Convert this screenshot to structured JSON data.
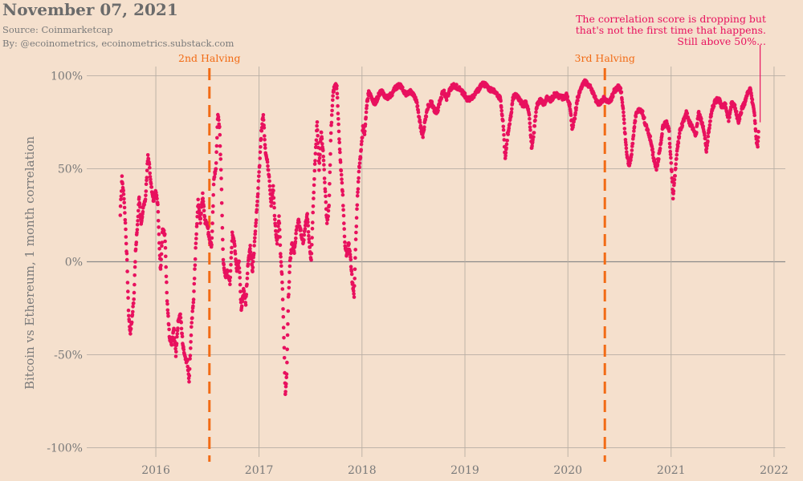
{
  "header": {
    "title": "November 07, 2021",
    "source": "Source: Coinmarketcap",
    "byline": "By: @ecoinometrics, ecoinometrics.substack.com"
  },
  "colors": {
    "background": "#f5e0cd",
    "points": "#e8115e",
    "halving": "#f26b15",
    "grid": "#b8aea4",
    "zero_line": "#8a8a8a"
  },
  "chart_data": {
    "type": "scatter",
    "xlabel": "",
    "ylabel": "Bitcoin vs Ethereum, 1 month correlation",
    "xlim": [
      "2015-05-01",
      "2022-02-10"
    ],
    "ylim": [
      -1.05,
      1.05
    ],
    "x_ticks": [
      {
        "date": "2016-01-01",
        "label": "2016"
      },
      {
        "date": "2017-01-01",
        "label": "2017"
      },
      {
        "date": "2018-01-01",
        "label": "2018"
      },
      {
        "date": "2019-01-01",
        "label": "2019"
      },
      {
        "date": "2020-01-01",
        "label": "2020"
      },
      {
        "date": "2021-01-01",
        "label": "2021"
      },
      {
        "date": "2022-01-01",
        "label": "2022"
      }
    ],
    "y_ticks": [
      {
        "value": 1.0,
        "label": "100%"
      },
      {
        "value": 0.5,
        "label": "50%"
      },
      {
        "value": 0.0,
        "label": "0%"
      },
      {
        "value": -0.5,
        "label": "-50%"
      },
      {
        "value": -1.0,
        "label": "-100%"
      }
    ],
    "grid": true,
    "vertical_markers": [
      {
        "date": "2016-07-09",
        "label": "2nd Halving"
      },
      {
        "date": "2020-05-11",
        "label": "3rd Halving"
      }
    ],
    "annotation": {
      "lines": [
        "The correlation score is dropping but",
        "that's not the first time that happens.",
        "Still above 50%..."
      ],
      "date": "2021-11-07",
      "value": 0.75
    },
    "series": [
      {
        "anchors": [
          [
            "2015-08-28",
            0.26
          ],
          [
            "2015-09-03",
            0.45
          ],
          [
            "2015-09-09",
            0.36
          ],
          [
            "2015-09-15",
            0.2
          ],
          [
            "2015-09-21",
            0.0
          ],
          [
            "2015-09-27",
            -0.3
          ],
          [
            "2015-10-03",
            -0.38
          ],
          [
            "2015-10-09",
            -0.3
          ],
          [
            "2015-10-15",
            -0.2
          ],
          [
            "2015-10-21",
            0.05
          ],
          [
            "2015-10-28",
            0.2
          ],
          [
            "2015-11-03",
            0.35
          ],
          [
            "2015-11-10",
            0.2
          ],
          [
            "2015-11-18",
            0.3
          ],
          [
            "2015-11-26",
            0.35
          ],
          [
            "2015-12-04",
            0.58
          ],
          [
            "2015-12-10",
            0.5
          ],
          [
            "2015-12-16",
            0.4
          ],
          [
            "2015-12-24",
            0.33
          ],
          [
            "2016-01-01",
            0.38
          ],
          [
            "2016-01-08",
            0.3
          ],
          [
            "2016-01-13",
            0.1
          ],
          [
            "2016-01-18",
            -0.05
          ],
          [
            "2016-01-25",
            0.18
          ],
          [
            "2016-02-02",
            0.15
          ],
          [
            "2016-02-10",
            -0.2
          ],
          [
            "2016-02-18",
            -0.4
          ],
          [
            "2016-02-26",
            -0.45
          ],
          [
            "2016-03-05",
            -0.36
          ],
          [
            "2016-03-12",
            -0.5
          ],
          [
            "2016-03-20",
            -0.33
          ],
          [
            "2016-03-28",
            -0.28
          ],
          [
            "2016-04-06",
            -0.45
          ],
          [
            "2016-04-14",
            -0.52
          ],
          [
            "2016-04-22",
            -0.54
          ],
          [
            "2016-04-28",
            -0.64
          ],
          [
            "2016-05-06",
            -0.35
          ],
          [
            "2016-05-14",
            -0.2
          ],
          [
            "2016-05-22",
            0.1
          ],
          [
            "2016-05-30",
            0.33
          ],
          [
            "2016-06-07",
            0.21
          ],
          [
            "2016-06-15",
            0.36
          ],
          [
            "2016-06-23",
            0.22
          ],
          [
            "2016-07-01",
            0.2
          ],
          [
            "2016-07-09",
            0.12
          ],
          [
            "2016-07-17",
            0.08
          ],
          [
            "2016-07-25",
            0.45
          ],
          [
            "2016-08-01",
            0.5
          ],
          [
            "2016-08-08",
            0.8
          ],
          [
            "2016-08-14",
            0.72
          ],
          [
            "2016-08-20",
            0.45
          ],
          [
            "2016-08-27",
            0.0
          ],
          [
            "2016-09-04",
            -0.08
          ],
          [
            "2016-09-12",
            -0.05
          ],
          [
            "2016-09-20",
            -0.12
          ],
          [
            "2016-09-28",
            0.15
          ],
          [
            "2016-10-06",
            0.1
          ],
          [
            "2016-10-14",
            -0.05
          ],
          [
            "2016-10-22",
            0.0
          ],
          [
            "2016-10-30",
            -0.26
          ],
          [
            "2016-11-07",
            -0.15
          ],
          [
            "2016-11-15",
            -0.22
          ],
          [
            "2016-11-23",
            0.0
          ],
          [
            "2016-12-01",
            0.08
          ],
          [
            "2016-12-09",
            -0.05
          ],
          [
            "2016-12-17",
            0.12
          ],
          [
            "2016-12-25",
            0.3
          ],
          [
            "2017-01-02",
            0.5
          ],
          [
            "2017-01-09",
            0.7
          ],
          [
            "2017-01-16",
            0.8
          ],
          [
            "2017-01-23",
            0.6
          ],
          [
            "2017-01-30",
            0.55
          ],
          [
            "2017-02-06",
            0.45
          ],
          [
            "2017-02-13",
            0.3
          ],
          [
            "2017-02-20",
            0.4
          ],
          [
            "2017-02-27",
            0.2
          ],
          [
            "2017-03-06",
            0.1
          ],
          [
            "2017-03-13",
            0.25
          ],
          [
            "2017-03-18",
            0.05
          ],
          [
            "2017-03-24",
            -0.1
          ],
          [
            "2017-03-30",
            -0.4
          ],
          [
            "2017-04-04",
            -0.72
          ],
          [
            "2017-04-09",
            -0.6
          ],
          [
            "2017-04-15",
            -0.2
          ],
          [
            "2017-04-21",
            0.0
          ],
          [
            "2017-04-28",
            0.1
          ],
          [
            "2017-05-06",
            0.05
          ],
          [
            "2017-05-14",
            0.18
          ],
          [
            "2017-05-22",
            0.22
          ],
          [
            "2017-05-30",
            0.15
          ],
          [
            "2017-06-07",
            0.1
          ],
          [
            "2017-06-14",
            0.2
          ],
          [
            "2017-06-21",
            0.25
          ],
          [
            "2017-06-28",
            0.1
          ],
          [
            "2017-07-05",
            0.0
          ],
          [
            "2017-07-12",
            0.3
          ],
          [
            "2017-07-19",
            0.55
          ],
          [
            "2017-07-26",
            0.75
          ],
          [
            "2017-08-02",
            0.5
          ],
          [
            "2017-08-09",
            0.7
          ],
          [
            "2017-08-16",
            0.6
          ],
          [
            "2017-08-23",
            0.4
          ],
          [
            "2017-08-30",
            0.2
          ],
          [
            "2017-09-06",
            0.3
          ],
          [
            "2017-09-13",
            0.7
          ],
          [
            "2017-09-20",
            0.9
          ],
          [
            "2017-09-27",
            0.95
          ],
          [
            "2017-10-04",
            0.94
          ],
          [
            "2017-10-11",
            0.7
          ],
          [
            "2017-10-18",
            0.5
          ],
          [
            "2017-10-25",
            0.35
          ],
          [
            "2017-11-01",
            0.1
          ],
          [
            "2017-11-08",
            0.03
          ],
          [
            "2017-11-14",
            0.1
          ],
          [
            "2017-11-20",
            0.05
          ],
          [
            "2017-11-27",
            -0.1
          ],
          [
            "2017-12-04",
            -0.18
          ],
          [
            "2017-12-10",
            0.12
          ],
          [
            "2017-12-16",
            0.35
          ],
          [
            "2017-12-22",
            0.5
          ],
          [
            "2017-12-29",
            0.6
          ],
          [
            "2018-01-04",
            0.72
          ],
          [
            "2018-01-10",
            0.68
          ],
          [
            "2018-01-18",
            0.85
          ],
          [
            "2018-01-26",
            0.92
          ],
          [
            "2018-02-05",
            0.88
          ],
          [
            "2018-02-15",
            0.85
          ],
          [
            "2018-02-25",
            0.88
          ],
          [
            "2018-03-08",
            0.92
          ],
          [
            "2018-03-20",
            0.9
          ],
          [
            "2018-04-02",
            0.88
          ],
          [
            "2018-04-15",
            0.9
          ],
          [
            "2018-04-28",
            0.93
          ],
          [
            "2018-05-12",
            0.95
          ],
          [
            "2018-05-25",
            0.93
          ],
          [
            "2018-06-08",
            0.9
          ],
          [
            "2018-06-20",
            0.92
          ],
          [
            "2018-07-02",
            0.9
          ],
          [
            "2018-07-12",
            0.87
          ],
          [
            "2018-07-20",
            0.8
          ],
          [
            "2018-07-28",
            0.72
          ],
          [
            "2018-08-05",
            0.68
          ],
          [
            "2018-08-14",
            0.77
          ],
          [
            "2018-08-24",
            0.84
          ],
          [
            "2018-09-04",
            0.86
          ],
          [
            "2018-09-14",
            0.82
          ],
          [
            "2018-09-24",
            0.8
          ],
          [
            "2018-10-04",
            0.86
          ],
          [
            "2018-10-16",
            0.92
          ],
          [
            "2018-10-28",
            0.88
          ],
          [
            "2018-11-08",
            0.92
          ],
          [
            "2018-11-20",
            0.95
          ],
          [
            "2018-12-04",
            0.94
          ],
          [
            "2018-12-18",
            0.92
          ],
          [
            "2018-12-30",
            0.9
          ],
          [
            "2019-01-10",
            0.87
          ],
          [
            "2019-01-22",
            0.88
          ],
          [
            "2019-02-04",
            0.9
          ],
          [
            "2019-02-16",
            0.92
          ],
          [
            "2019-03-01",
            0.96
          ],
          [
            "2019-03-14",
            0.95
          ],
          [
            "2019-03-28",
            0.93
          ],
          [
            "2019-04-10",
            0.92
          ],
          [
            "2019-04-24",
            0.9
          ],
          [
            "2019-05-06",
            0.88
          ],
          [
            "2019-05-16",
            0.75
          ],
          [
            "2019-05-24",
            0.55
          ],
          [
            "2019-06-01",
            0.68
          ],
          [
            "2019-06-10",
            0.75
          ],
          [
            "2019-06-20",
            0.88
          ],
          [
            "2019-07-02",
            0.9
          ],
          [
            "2019-07-14",
            0.87
          ],
          [
            "2019-07-26",
            0.84
          ],
          [
            "2019-08-06",
            0.86
          ],
          [
            "2019-08-16",
            0.8
          ],
          [
            "2019-08-26",
            0.6
          ],
          [
            "2019-09-04",
            0.72
          ],
          [
            "2019-09-14",
            0.85
          ],
          [
            "2019-09-26",
            0.87
          ],
          [
            "2019-10-08",
            0.85
          ],
          [
            "2019-10-20",
            0.88
          ],
          [
            "2019-11-02",
            0.87
          ],
          [
            "2019-11-16",
            0.9
          ],
          [
            "2019-12-01",
            0.89
          ],
          [
            "2019-12-16",
            0.88
          ],
          [
            "2019-12-28",
            0.9
          ],
          [
            "2020-01-08",
            0.84
          ],
          [
            "2020-01-16",
            0.72
          ],
          [
            "2020-01-24",
            0.76
          ],
          [
            "2020-02-03",
            0.87
          ],
          [
            "2020-02-14",
            0.92
          ],
          [
            "2020-02-26",
            0.97
          ],
          [
            "2020-03-08",
            0.96
          ],
          [
            "2020-03-20",
            0.94
          ],
          [
            "2020-04-01",
            0.9
          ],
          [
            "2020-04-12",
            0.86
          ],
          [
            "2020-04-24",
            0.85
          ],
          [
            "2020-05-06",
            0.88
          ],
          [
            "2020-05-18",
            0.86
          ],
          [
            "2020-06-01",
            0.87
          ],
          [
            "2020-06-14",
            0.92
          ],
          [
            "2020-06-28",
            0.94
          ],
          [
            "2020-07-08",
            0.92
          ],
          [
            "2020-07-16",
            0.8
          ],
          [
            "2020-07-26",
            0.6
          ],
          [
            "2020-08-04",
            0.52
          ],
          [
            "2020-08-12",
            0.55
          ],
          [
            "2020-08-20",
            0.68
          ],
          [
            "2020-08-30",
            0.8
          ],
          [
            "2020-09-10",
            0.82
          ],
          [
            "2020-09-22",
            0.8
          ],
          [
            "2020-10-02",
            0.74
          ],
          [
            "2020-10-10",
            0.7
          ],
          [
            "2020-10-20",
            0.66
          ],
          [
            "2020-11-01",
            0.55
          ],
          [
            "2020-11-10",
            0.5
          ],
          [
            "2020-11-20",
            0.58
          ],
          [
            "2020-12-02",
            0.72
          ],
          [
            "2020-12-14",
            0.75
          ],
          [
            "2020-12-24",
            0.72
          ],
          [
            "2021-01-02",
            0.5
          ],
          [
            "2021-01-08",
            0.35
          ],
          [
            "2021-01-14",
            0.45
          ],
          [
            "2021-01-22",
            0.6
          ],
          [
            "2021-02-01",
            0.7
          ],
          [
            "2021-02-12",
            0.75
          ],
          [
            "2021-02-24",
            0.8
          ],
          [
            "2021-03-06",
            0.75
          ],
          [
            "2021-03-18",
            0.72
          ],
          [
            "2021-03-30",
            0.68
          ],
          [
            "2021-04-08",
            0.8
          ],
          [
            "2021-04-18",
            0.76
          ],
          [
            "2021-04-28",
            0.7
          ],
          [
            "2021-05-06",
            0.6
          ],
          [
            "2021-05-16",
            0.72
          ],
          [
            "2021-05-26",
            0.82
          ],
          [
            "2021-06-06",
            0.86
          ],
          [
            "2021-06-18",
            0.88
          ],
          [
            "2021-06-30",
            0.83
          ],
          [
            "2021-07-12",
            0.85
          ],
          [
            "2021-07-24",
            0.76
          ],
          [
            "2021-08-04",
            0.86
          ],
          [
            "2021-08-16",
            0.83
          ],
          [
            "2021-08-28",
            0.75
          ],
          [
            "2021-09-08",
            0.82
          ],
          [
            "2021-09-18",
            0.85
          ],
          [
            "2021-09-28",
            0.9
          ],
          [
            "2021-10-08",
            0.93
          ],
          [
            "2021-10-16",
            0.86
          ],
          [
            "2021-10-24",
            0.78
          ],
          [
            "2021-10-30",
            0.66
          ],
          [
            "2021-11-04",
            0.62
          ],
          [
            "2021-11-07",
            0.7
          ]
        ]
      }
    ]
  }
}
